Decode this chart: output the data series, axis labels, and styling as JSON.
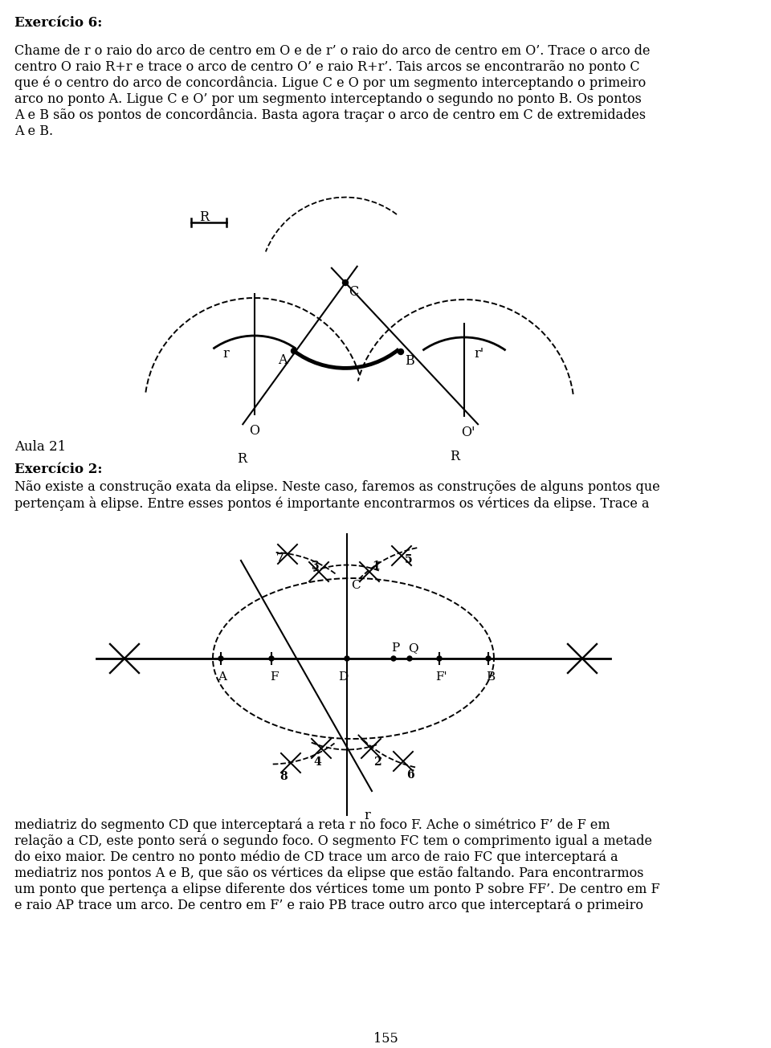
{
  "title_ex6": "Exercício 6:",
  "title_aula": "Aula 21",
  "title_ex2": "Exercício 2:",
  "para1_lines": [
    "Chame de r o raio do arco de centro em O e de r’ o raio do arco de centro em O’. Trace o arco de",
    "centro O raio R+r e trace o arco de centro O’ e raio R+r’. Tais arcos se encontrarão no ponto C",
    "que é o centro do arco de concordância. Ligue C e O por um segmento interceptando o primeiro",
    "arco no ponto A. Ligue C e O’ por um segmento interceptando o segundo no ponto B. Os pontos",
    "A e B são os pontos de concordância. Basta agora traçar o arco de centro em C de extremidades",
    "A e B."
  ],
  "para2_lines": [
    "Não existe a construção exata da elipse. Neste caso, faremos as construções de alguns pontos que",
    "pertençam à elipse. Entre esses pontos é importante encontrarmos os vértices da elipse. Trace a"
  ],
  "para3_lines": [
    "mediatriz do segmento CD que interceptará a reta r no foco F. Ache o simétrico F’ de F em",
    "relação a CD, este ponto será o segundo foco. O segmento FC tem o comprimento igual a metade",
    "do eixo maior. De centro no ponto médio de CD trace um arco de raio FC que interceptará a",
    "mediatriz nos pontos A e B, que são os vértices da elipse que estão faltando. Para encontrarmos",
    "um ponto que pertença a elipse diferente dos vértices tome um ponto P sobre FF’. De centro em F",
    "e raio AP trace um arco. De centro em F’ e raio PB trace outro arco que interceptará o primeiro"
  ],
  "page_num": "155",
  "bg_color": "#ffffff"
}
